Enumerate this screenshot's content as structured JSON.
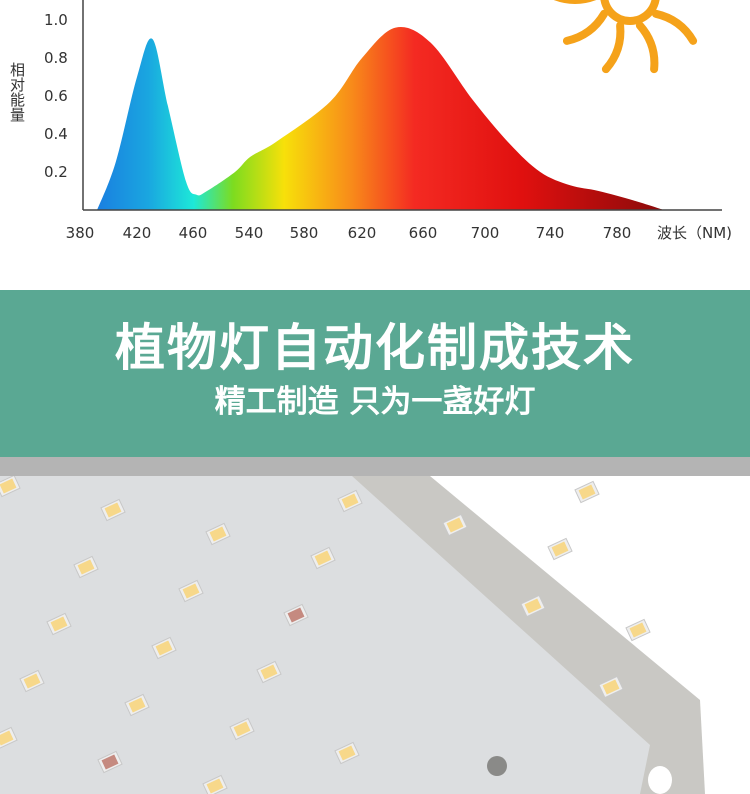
{
  "chart_data": {
    "type": "area",
    "ylabel": "相对能量",
    "xlabel": "波长（NM)",
    "y_ticks": [
      "0.2",
      "0.4",
      "0.6",
      "0.8",
      "1.0"
    ],
    "x_ticks": [
      "380",
      "420",
      "460",
      "540",
      "580",
      "620",
      "660",
      "700",
      "740",
      "780"
    ],
    "ylim": [
      0,
      1.05
    ],
    "grid": false,
    "series": [
      {
        "x": [
          392,
          405,
          420,
          431,
          442,
          455,
          465,
          480,
          520,
          541,
          560,
          598,
          620,
          642,
          665,
          692,
          715,
          734,
          752,
          769,
          790,
          808
        ],
        "y": [
          0.0,
          0.25,
          0.7,
          0.9,
          0.55,
          0.15,
          0.08,
          0.1,
          0.2,
          0.28,
          0.36,
          0.57,
          0.8,
          0.96,
          0.88,
          0.58,
          0.35,
          0.2,
          0.13,
          0.1,
          0.05,
          0.0
        ]
      }
    ],
    "colors": {
      "blue_peak": "#1a9fe0",
      "cyan": "#1de0d0",
      "green": "#7ddc1f",
      "yellow": "#f7d80a",
      "orange": "#f88a1a",
      "red": "#f0201a",
      "dark_red": "#8a0a0a"
    }
  },
  "sun_icon_color": "#f5a21a",
  "banner": {
    "title": "植物灯自动化制成技术",
    "subtitle": "精工制造 只为一盏好灯",
    "background": "#5aa893"
  }
}
